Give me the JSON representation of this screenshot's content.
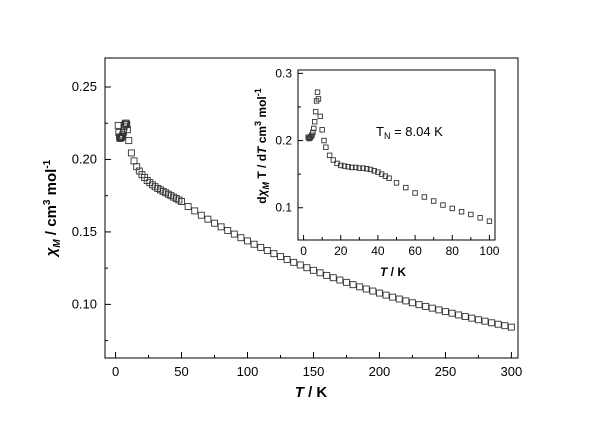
{
  "chart_data": [
    {
      "type": "scatter",
      "marker": "open-square",
      "xlabel_symbol": "T",
      "xlabel_unit": " / K",
      "ylabel_symbol": "χ",
      "ylabel_subscript": "M",
      "ylabel_unit": " / cm",
      "ylabel_sup": "3",
      "ylabel_unit2": " mol",
      "ylabel_sup2": "-1",
      "xlim": [
        -8,
        305
      ],
      "ylim": [
        0.063,
        0.27
      ],
      "xticks": [
        0,
        50,
        100,
        150,
        200,
        250,
        300
      ],
      "xtick_labels": [
        "0",
        "50",
        "100",
        "150",
        "200",
        "250",
        "300"
      ],
      "yticks": [
        0.1,
        0.15,
        0.2,
        0.25
      ],
      "ytick_labels": [
        "0.10",
        "0.15",
        "0.20",
        "0.25"
      ],
      "grid": false,
      "x": [
        2,
        2.5,
        3,
        3.5,
        4,
        4.5,
        5,
        5.5,
        6,
        6.5,
        7,
        7.5,
        8,
        8.5,
        9,
        10,
        12,
        14,
        16,
        18,
        20,
        22,
        24,
        26,
        28,
        30,
        32,
        34,
        36,
        38,
        40,
        42,
        44,
        46,
        48,
        50,
        55,
        60,
        65,
        70,
        75,
        80,
        85,
        90,
        95,
        100,
        105,
        110,
        115,
        120,
        125,
        130,
        135,
        140,
        145,
        150,
        155,
        160,
        165,
        170,
        175,
        180,
        185,
        190,
        195,
        200,
        205,
        210,
        215,
        220,
        225,
        230,
        235,
        240,
        245,
        250,
        255,
        260,
        265,
        270,
        275,
        280,
        285,
        290,
        295,
        300
      ],
      "y": [
        0.2235,
        0.2185,
        0.2155,
        0.2145,
        0.215,
        0.2155,
        0.216,
        0.217,
        0.219,
        0.2225,
        0.224,
        0.225,
        0.225,
        0.224,
        0.2205,
        0.213,
        0.2045,
        0.199,
        0.195,
        0.192,
        0.1895,
        0.1875,
        0.1855,
        0.184,
        0.1825,
        0.1812,
        0.18,
        0.179,
        0.178,
        0.177,
        0.176,
        0.175,
        0.174,
        0.173,
        0.172,
        0.171,
        0.1675,
        0.1645,
        0.1615,
        0.1588,
        0.156,
        0.1535,
        0.151,
        0.1485,
        0.146,
        0.1438,
        0.1415,
        0.1393,
        0.1372,
        0.135,
        0.133,
        0.131,
        0.129,
        0.1272,
        0.1253,
        0.1235,
        0.1218,
        0.12,
        0.1184,
        0.1168,
        0.1152,
        0.1136,
        0.1121,
        0.1106,
        0.1092,
        0.1078,
        0.1064,
        0.105,
        0.1037,
        0.1024,
        0.1011,
        0.0998,
        0.0986,
        0.0974,
        0.0962,
        0.095,
        0.0939,
        0.0927,
        0.0916,
        0.0905,
        0.0894,
        0.0884,
        0.0873,
        0.0863,
        0.0853,
        0.0843
      ]
    },
    {
      "type": "scatter",
      "marker": "open-square",
      "inset": true,
      "xlabel_symbol": "T",
      "xlabel_unit": " / K",
      "ylabel_pre": "d",
      "ylabel_symbol": "χ",
      "ylabel_subscript": "M",
      "ylabel_mid": " T / d",
      "ylabel_symbol2": "T",
      "ylabel_unit": " cm",
      "ylabel_sup": "3",
      "ylabel_unit2": " mol",
      "ylabel_sup2": "-1",
      "annotation_prefix": "T",
      "annotation_sub": "N",
      "annotation_value": " = 8.04 K",
      "xlim": [
        -3,
        103
      ],
      "ylim": [
        0.052,
        0.305
      ],
      "xticks": [
        0,
        20,
        40,
        60,
        80,
        100
      ],
      "xtick_labels": [
        "0",
        "20",
        "40",
        "60",
        "80",
        "100"
      ],
      "yticks": [
        0.1,
        0.2,
        0.3
      ],
      "ytick_labels": [
        "0.1",
        "0.2",
        "0.3"
      ],
      "grid": false,
      "x": [
        2.5,
        3,
        3.5,
        4,
        4.5,
        5,
        5.5,
        6,
        6.5,
        7,
        7.5,
        8,
        9,
        10,
        11,
        12,
        14,
        16,
        18,
        20,
        22,
        24,
        26,
        28,
        30,
        32,
        34,
        36,
        38,
        40,
        42,
        44,
        46,
        50,
        55,
        60,
        65,
        70,
        75,
        80,
        85,
        90,
        95,
        100
      ],
      "y": [
        0.205,
        0.203,
        0.204,
        0.206,
        0.208,
        0.212,
        0.218,
        0.228,
        0.243,
        0.259,
        0.272,
        0.262,
        0.236,
        0.216,
        0.2,
        0.19,
        0.178,
        0.171,
        0.166,
        0.163,
        0.162,
        0.161,
        0.16,
        0.16,
        0.159,
        0.159,
        0.158,
        0.157,
        0.155,
        0.153,
        0.15,
        0.147,
        0.144,
        0.137,
        0.13,
        0.122,
        0.116,
        0.11,
        0.104,
        0.099,
        0.094,
        0.09,
        0.085,
        0.08
      ]
    }
  ]
}
